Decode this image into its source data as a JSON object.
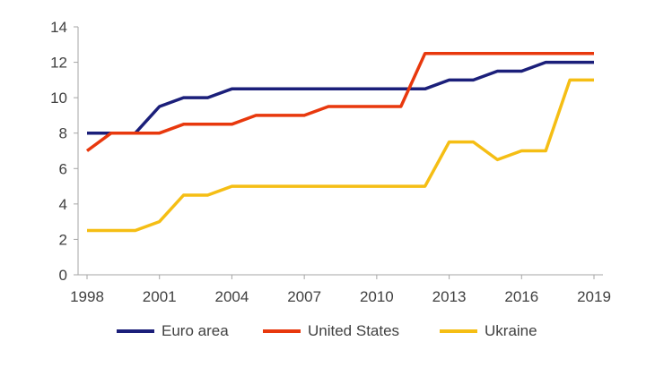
{
  "chart_data": {
    "type": "line",
    "x": [
      1998,
      1999,
      2000,
      2001,
      2002,
      2003,
      2004,
      2005,
      2006,
      2007,
      2008,
      2009,
      2010,
      2011,
      2012,
      2013,
      2014,
      2015,
      2016,
      2017,
      2018,
      2019
    ],
    "xticks": [
      "1998",
      "2001",
      "2004",
      "2007",
      "2010",
      "2013",
      "2016",
      "2019"
    ],
    "yticks": [
      "0",
      "2",
      "4",
      "6",
      "8",
      "10",
      "12",
      "14"
    ],
    "ylim": [
      0,
      14
    ],
    "xlim": [
      1998,
      2019
    ],
    "grid": false,
    "legend_position": "bottom",
    "series": [
      {
        "name": "Euro area",
        "color": "#1b1f7a",
        "values": [
          8,
          8,
          8,
          9.5,
          10,
          10,
          10.5,
          10.5,
          10.5,
          10.5,
          10.5,
          10.5,
          10.5,
          10.5,
          10.5,
          11,
          11,
          11.5,
          11.5,
          12,
          12,
          12
        ]
      },
      {
        "name": "United States",
        "color": "#e8380d",
        "values": [
          7,
          8,
          8,
          8,
          8.5,
          8.5,
          8.5,
          9,
          9,
          9,
          9.5,
          9.5,
          9.5,
          9.5,
          12.5,
          12.5,
          12.5,
          12.5,
          12.5,
          12.5,
          12.5,
          12.5
        ]
      },
      {
        "name": "Ukraine",
        "color": "#f5be14",
        "values": [
          2.5,
          2.5,
          2.5,
          3,
          4.5,
          4.5,
          5,
          5,
          5,
          5,
          5,
          5,
          5,
          5,
          5,
          7.5,
          7.5,
          6.5,
          7,
          7,
          11,
          11
        ]
      }
    ]
  }
}
